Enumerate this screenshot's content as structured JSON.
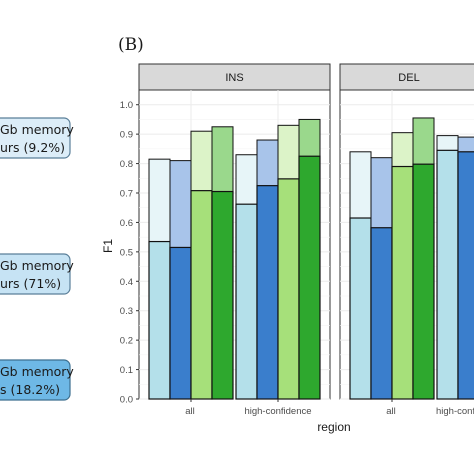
{
  "panel_label": "(B)",
  "callouts": [
    {
      "line1": "Gb memory",
      "line2": "urs (9.2%)",
      "fill": "#dcedf8",
      "stroke": "#5a7f99"
    },
    {
      "line1": "Gb memory",
      "line2": "urs (71%)",
      "fill": "#c6e3f4",
      "stroke": "#5a7f99"
    },
    {
      "line1": "Gb memory",
      "line2": "s (18.2%)",
      "fill": "#6eb8e6",
      "stroke": "#3d6f8f"
    }
  ],
  "colors": {
    "strip_bg": "#d9d9d9",
    "strip_border": "#333333",
    "panel_bg": "#ffffff",
    "grid_major": "#ebebeb",
    "grid_minor": "#f5f5f5",
    "bar_outline": "#111111",
    "series_colors": [
      "#b4e0ea",
      "#3a7ecc",
      "#a6e07a",
      "#2ea82e"
    ],
    "series_light": [
      "#e7f5f8",
      "#a8c4ea",
      "#dcf3c8",
      "#9ad88c"
    ]
  },
  "chart_data": {
    "type": "bar",
    "title": "",
    "xlabel": "region",
    "ylabel": "F1",
    "ylim": [
      0,
      1.05
    ],
    "yticks": [
      0.0,
      0.1,
      0.2,
      0.3,
      0.4,
      0.5,
      0.6,
      0.7,
      0.8,
      0.9,
      1.0
    ],
    "ytick_labels": [
      "0.0",
      "0.1",
      "0.2",
      "0.3",
      "0.4",
      "0.5",
      "0.6",
      "0.7",
      "0.8",
      "0.9",
      "1.0"
    ],
    "grid": true,
    "categories": [
      "all",
      "high-confidence"
    ],
    "facets": [
      {
        "name": "INS",
        "groups": [
          {
            "category": "all",
            "bars": [
              {
                "inner": 0.535,
                "outer": 0.815
              },
              {
                "inner": 0.515,
                "outer": 0.81
              },
              {
                "inner": 0.708,
                "outer": 0.91
              },
              {
                "inner": 0.705,
                "outer": 0.925
              }
            ]
          },
          {
            "category": "high-confidence",
            "bars": [
              {
                "inner": 0.662,
                "outer": 0.83
              },
              {
                "inner": 0.725,
                "outer": 0.88
              },
              {
                "inner": 0.748,
                "outer": 0.93
              },
              {
                "inner": 0.825,
                "outer": 0.95
              }
            ]
          }
        ]
      },
      {
        "name": "DEL",
        "groups": [
          {
            "category": "all",
            "bars": [
              {
                "inner": 0.615,
                "outer": 0.84
              },
              {
                "inner": 0.582,
                "outer": 0.82
              },
              {
                "inner": 0.79,
                "outer": 0.905
              },
              {
                "inner": 0.798,
                "outer": 0.955
              }
            ]
          },
          {
            "category": "high-confidence",
            "bars": [
              {
                "inner": 0.845,
                "outer": 0.895
              },
              {
                "inner": 0.84,
                "outer": 0.89
              }
            ]
          }
        ]
      }
    ]
  }
}
